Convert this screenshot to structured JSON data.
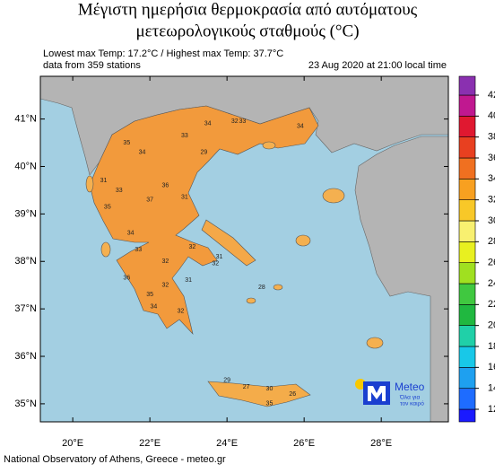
{
  "title_lines": [
    "Μέγιστη ημερήσια θερμοκρασία από αυτόματους",
    "μετεωρολογικούς σταθμούς (°C)"
  ],
  "info": {
    "extremes": "Lowest max Temp: 17.2°C / Highest max Temp: 37.7°C",
    "stations": "data from 359 stations",
    "date": "23 Aug 2020 at 21:00 local time"
  },
  "map": {
    "xlim": [
      19.16,
      29.74
    ],
    "ylim": [
      34.62,
      41.9
    ],
    "xticks": [
      {
        "value": 20,
        "label": "20°E"
      },
      {
        "value": 22,
        "label": "22°E"
      },
      {
        "value": 24,
        "label": "24°E"
      },
      {
        "value": 26,
        "label": "26°E"
      },
      {
        "value": 28,
        "label": "28°E"
      }
    ],
    "yticks": [
      {
        "value": 35,
        "label": "35°N"
      },
      {
        "value": 36,
        "label": "36°N"
      },
      {
        "value": 37,
        "label": "37°N"
      },
      {
        "value": 38,
        "label": "38°N"
      },
      {
        "value": 39,
        "label": "39°N"
      },
      {
        "value": 40,
        "label": "40°N"
      },
      {
        "value": 41,
        "label": "41°N"
      }
    ],
    "stations": [
      {
        "lon": 22.9,
        "lat": 40.65,
        "value": 33
      },
      {
        "lon": 23.5,
        "lat": 40.9,
        "value": 34
      },
      {
        "lon": 24.4,
        "lat": 40.95,
        "value": 33
      },
      {
        "lon": 25.9,
        "lat": 40.85,
        "value": 34
      },
      {
        "lon": 21.4,
        "lat": 40.5,
        "value": 35
      },
      {
        "lon": 21.8,
        "lat": 40.3,
        "value": 34
      },
      {
        "lon": 20.8,
        "lat": 39.7,
        "value": 31
      },
      {
        "lon": 21.2,
        "lat": 39.5,
        "value": 33
      },
      {
        "lon": 22.4,
        "lat": 39.6,
        "value": 36
      },
      {
        "lon": 22.0,
        "lat": 39.3,
        "value": 37
      },
      {
        "lon": 22.9,
        "lat": 39.35,
        "value": 31
      },
      {
        "lon": 20.9,
        "lat": 39.15,
        "value": 35
      },
      {
        "lon": 21.5,
        "lat": 38.6,
        "value": 34
      },
      {
        "lon": 21.7,
        "lat": 38.25,
        "value": 33
      },
      {
        "lon": 22.4,
        "lat": 38.0,
        "value": 32
      },
      {
        "lon": 23.1,
        "lat": 38.3,
        "value": 32
      },
      {
        "lon": 23.7,
        "lat": 37.95,
        "value": 32
      },
      {
        "lon": 23.8,
        "lat": 38.1,
        "value": 31
      },
      {
        "lon": 21.4,
        "lat": 37.65,
        "value": 36
      },
      {
        "lon": 22.0,
        "lat": 37.3,
        "value": 35
      },
      {
        "lon": 22.1,
        "lat": 37.05,
        "value": 34
      },
      {
        "lon": 22.4,
        "lat": 37.5,
        "value": 32
      },
      {
        "lon": 22.8,
        "lat": 36.95,
        "value": 32
      },
      {
        "lon": 23.0,
        "lat": 37.6,
        "value": 31
      },
      {
        "lon": 24.0,
        "lat": 35.5,
        "value": 29
      },
      {
        "lon": 24.5,
        "lat": 35.35,
        "value": 27
      },
      {
        "lon": 25.1,
        "lat": 35.32,
        "value": 30
      },
      {
        "lon": 25.7,
        "lat": 35.2,
        "value": 26
      },
      {
        "lon": 25.1,
        "lat": 35.0,
        "value": 35
      },
      {
        "lon": 24.2,
        "lat": 40.95,
        "value": 32
      },
      {
        "lon": 23.4,
        "lat": 40.3,
        "value": 29
      },
      {
        "lon": 24.9,
        "lat": 37.45,
        "value": 28
      }
    ]
  },
  "colorbar": {
    "lim": [
      10.8,
      43.8
    ],
    "ticks": [
      12,
      14,
      16,
      18,
      20,
      22,
      24,
      26,
      28,
      30,
      32,
      34,
      36,
      38,
      40,
      42
    ],
    "colors": [
      "#1a1aff",
      "#1e6cff",
      "#1ea0f0",
      "#18c8e8",
      "#20d0a8",
      "#20b840",
      "#40c840",
      "#a0e020",
      "#e8f020",
      "#f8f070",
      "#f8c828",
      "#f8a020",
      "#f07020",
      "#e84020",
      "#e01830",
      "#c01890",
      "#8a30b0"
    ]
  },
  "logo": {
    "name": "Meteo",
    "tagline_1": "Όλα για",
    "tagline_2": "τον καιρό"
  },
  "footer": "National Observatory of Athens, Greece - meteo.gr"
}
